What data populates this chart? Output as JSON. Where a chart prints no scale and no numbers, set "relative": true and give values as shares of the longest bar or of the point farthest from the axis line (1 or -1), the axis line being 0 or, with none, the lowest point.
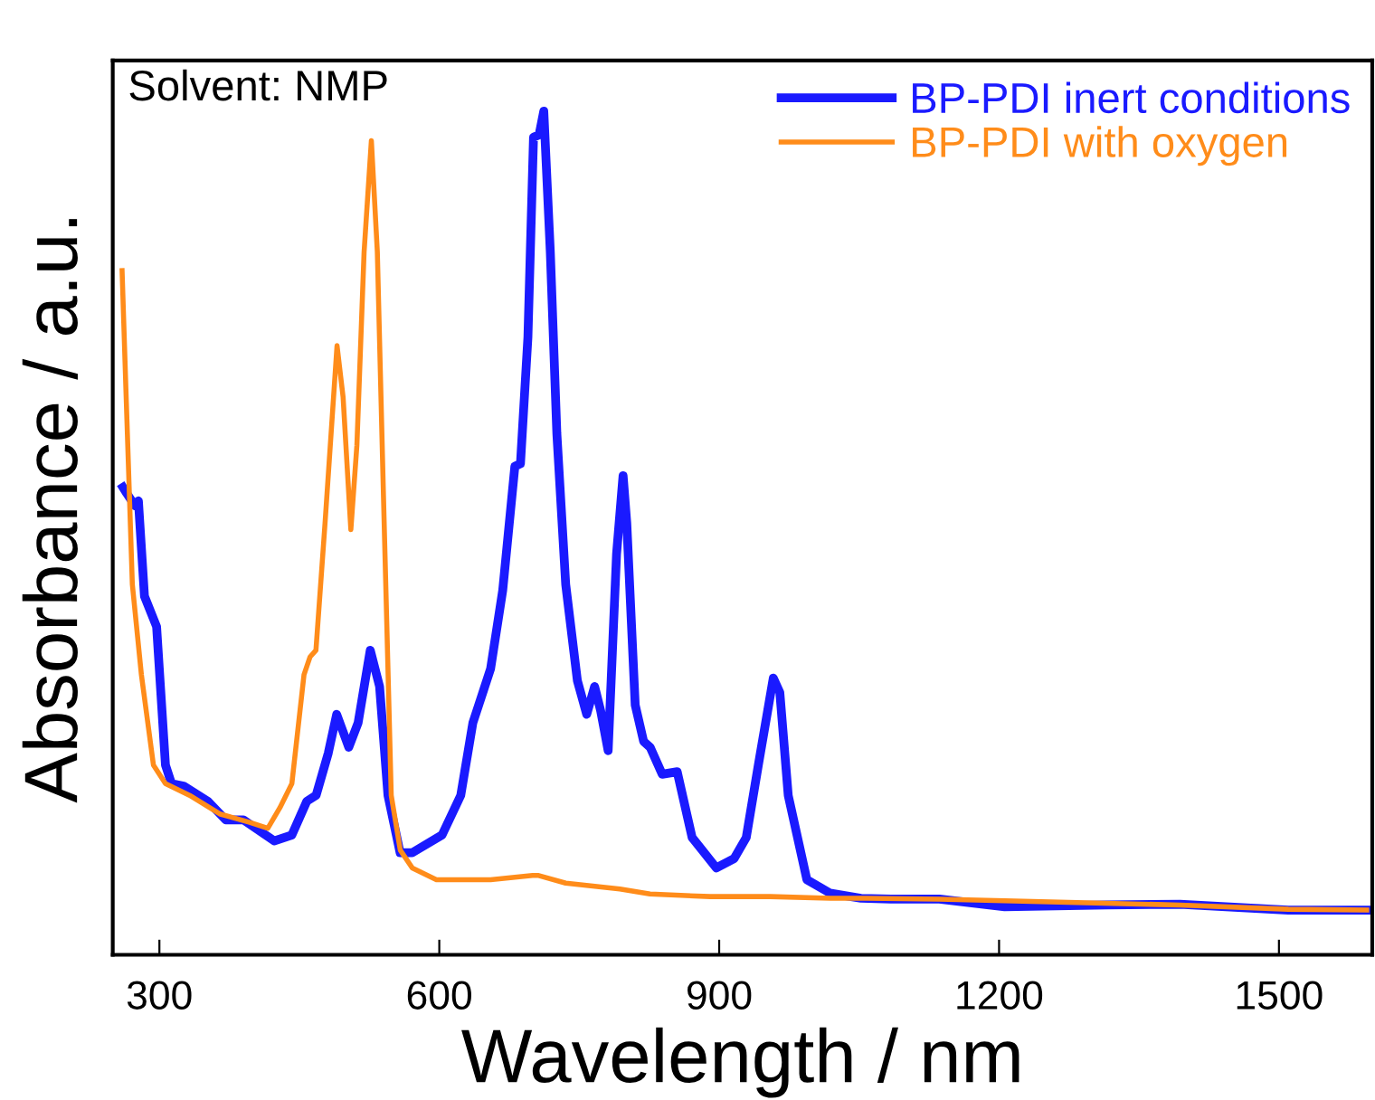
{
  "chart_data": {
    "type": "line",
    "xlabel": "Wavelength / nm",
    "ylabel": "Absorbance / a.u.",
    "relative": true,
    "xlim": [
      250,
      1600
    ],
    "xticks": [
      300,
      600,
      900,
      1200,
      1500
    ],
    "legend": "top right",
    "grid": false,
    "annotations": [
      "Solvent: NMP"
    ],
    "series": [
      {
        "name": "BP-PDI inert conditions",
        "color": "#1a1aff",
        "x": [
          261,
          265,
          274,
          277.5,
          284,
          297,
          306.5,
          313,
          326,
          352,
          371,
          390,
          423,
          442,
          458,
          468,
          481,
          490,
          503,
          513,
          526,
          536,
          545,
          558,
          571,
          603,
          623,
          636,
          655,
          668,
          681,
          687,
          695,
          701,
          707,
          712,
          719,
          726,
          735.5,
          748,
          758,
          766.5,
          773,
          781,
          790,
          797,
          801,
          810,
          819,
          826,
          839,
          855,
          871,
          897,
          916,
          929,
          942,
          958,
          965,
          974,
          994,
          1019,
          1052,
          1084,
          1136,
          1206,
          1316,
          1394,
          1510,
          1594
        ],
        "values": [
          0.554,
          0.547,
          0.532,
          0.538,
          0.425,
          0.389,
          0.225,
          0.203,
          0.2,
          0.182,
          0.16,
          0.16,
          0.135,
          0.142,
          0.182,
          0.189,
          0.239,
          0.285,
          0.246,
          0.275,
          0.361,
          0.318,
          0.189,
          0.121,
          0.121,
          0.142,
          0.189,
          0.275,
          0.339,
          0.432,
          0.579,
          0.582,
          0.732,
          0.969,
          0.972,
          1.0,
          0.833,
          0.618,
          0.439,
          0.325,
          0.285,
          0.318,
          0.289,
          0.242,
          0.475,
          0.568,
          0.511,
          0.296,
          0.253,
          0.246,
          0.214,
          0.217,
          0.139,
          0.103,
          0.114,
          0.139,
          0.225,
          0.328,
          0.311,
          0.189,
          0.089,
          0.073,
          0.067,
          0.066,
          0.066,
          0.057,
          0.059,
          0.06,
          0.053,
          0.053
        ]
      },
      {
        "name": "BP-PDI with oxygen",
        "color": "#ff8c1a",
        "x": [
          260,
          264.6,
          271,
          280.7,
          293.6,
          306.5,
          332.3,
          364.6,
          396.9,
          416.2,
          429,
          442,
          455,
          461.4,
          467.8,
          477.5,
          490.4,
          496.9,
          505.2,
          511.7,
          519.4,
          527.2,
          533.6,
          540.1,
          548.5,
          558.2,
          571,
          596.9,
          655,
          700,
          706.5,
          735.5,
          793.6,
          825.9,
          890.4,
          954.9,
          1019.4,
          1058,
          1136,
          1206,
          1394,
          1510,
          1594
        ],
        "values": [
          0.811,
          0.654,
          0.439,
          0.332,
          0.225,
          0.203,
          0.189,
          0.167,
          0.157,
          0.15,
          0.174,
          0.203,
          0.332,
          0.353,
          0.361,
          0.511,
          0.722,
          0.661,
          0.504,
          0.604,
          0.833,
          0.965,
          0.833,
          0.547,
          0.189,
          0.124,
          0.103,
          0.089,
          0.089,
          0.094,
          0.094,
          0.085,
          0.078,
          0.072,
          0.069,
          0.069,
          0.067,
          0.067,
          0.066,
          0.064,
          0.059,
          0.054,
          0.053
        ]
      }
    ]
  }
}
